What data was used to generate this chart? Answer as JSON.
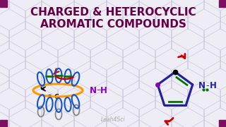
{
  "title_line1": "CHARGED & HETEROCYCLIC",
  "title_line2": "AROMATIC COMPOUNDS",
  "title_color": "#660044",
  "bg_color": "#eeecf4",
  "watermark": "Leah4Sci",
  "corner_color": "#7B1060",
  "orange": "#FF9900",
  "blue": "#1155CC",
  "red": "#CC0000",
  "green": "#007700",
  "purple": "#8800BB",
  "gray": "#888888",
  "navy": "#222299"
}
